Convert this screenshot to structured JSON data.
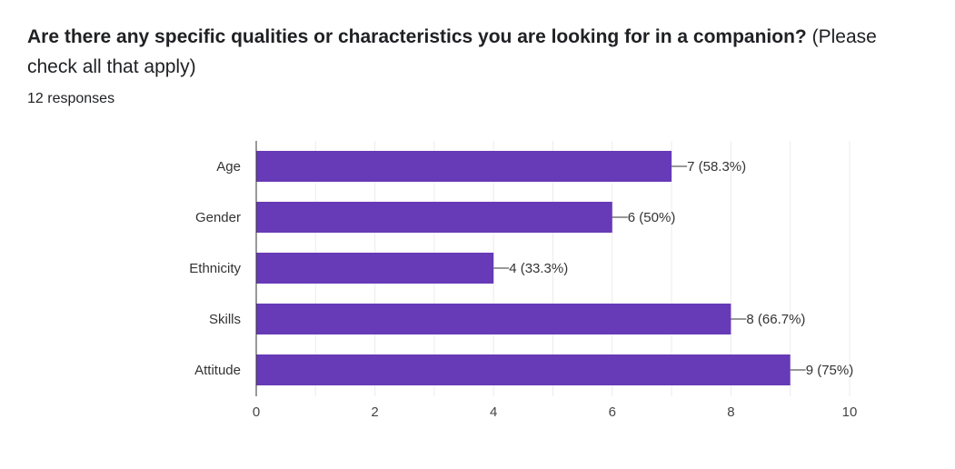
{
  "question": {
    "title_bold": "Are there any specific qualities or characteristics you are looking for in a companion?",
    "title_rest": "(Please check all that apply)"
  },
  "responses_label": "12 responses",
  "colors": {
    "bar": "#673ab7",
    "grid": "#ececec",
    "axis": "#333333",
    "label_text": "#333333"
  },
  "chart_data": {
    "type": "bar",
    "orientation": "horizontal",
    "categories": [
      "Age",
      "Gender",
      "Ethnicity",
      "Skills",
      "Attitude"
    ],
    "values": [
      7,
      6,
      4,
      8,
      9
    ],
    "data_labels": [
      "7 (58.3%)",
      "6 (50%)",
      "4 (33.3%)",
      "8 (66.7%)",
      "9 (75%)"
    ],
    "xlim": [
      0,
      10
    ],
    "xticks": [
      0,
      2,
      4,
      6,
      8,
      10
    ],
    "grid": true
  }
}
